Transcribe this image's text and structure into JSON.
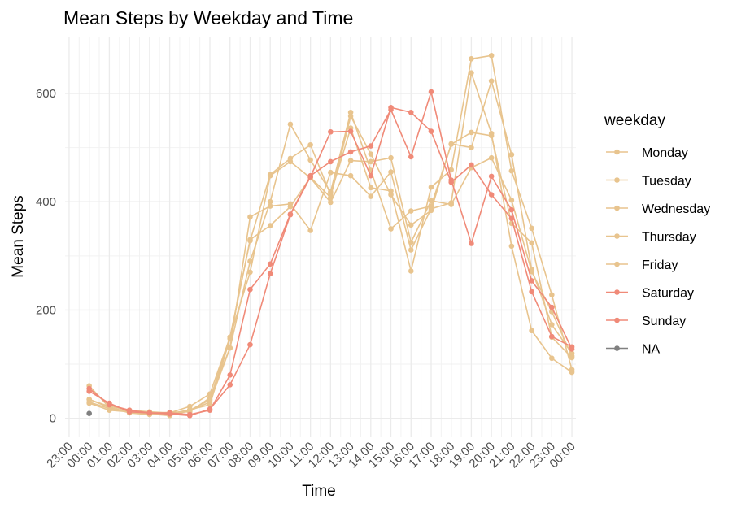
{
  "chart_data": {
    "type": "line",
    "title": "Mean Steps by Weekday and Time",
    "xlabel": "Time",
    "ylabel": "Mean Steps",
    "x_tick_labels": [
      "23:00",
      "00:00",
      "01:00",
      "02:00",
      "03:00",
      "04:00",
      "05:00",
      "06:00",
      "07:00",
      "08:00",
      "09:00",
      "10:00",
      "11:00",
      "12:00",
      "13:00",
      "14:00",
      "15:00",
      "16:00",
      "17:00",
      "18:00",
      "19:00",
      "20:00",
      "21:00",
      "22:00",
      "23:00",
      "00:00"
    ],
    "x_hours": [
      -1,
      0,
      1,
      2,
      3,
      4,
      5,
      6,
      7,
      8,
      9,
      10,
      11,
      12,
      13,
      14,
      15,
      16,
      17,
      18,
      19,
      20,
      21,
      22,
      23,
      24
    ],
    "y_ticks": [
      0,
      200,
      400,
      600
    ],
    "xlim": [
      -1.2,
      24.2
    ],
    "ylim": [
      -35,
      705
    ],
    "grid": true,
    "legend": {
      "title": "weekday",
      "position": "right"
    },
    "series": [
      {
        "name": "Monday",
        "color": "#E8C48E",
        "values": [
          30,
          18,
          13,
          9,
          11,
          12,
          38,
          130,
          372,
          392,
          396,
          347,
          454,
          448,
          410,
          455,
          311,
          387,
          398,
          638,
          526,
          318,
          162,
          111,
          85
        ]
      },
      {
        "name": "Tuesday",
        "color": "#E8C48E",
        "values": [
          35,
          22,
          15,
          12,
          10,
          22,
          45,
          150,
          328,
          450,
          480,
          505,
          413,
          536,
          426,
          420,
          272,
          427,
          459,
          664,
          670,
          457,
          351,
          228,
          90
        ]
      },
      {
        "name": "Wednesday",
        "color": "#E8C48E",
        "values": [
          28,
          15,
          12,
          8,
          5,
          14,
          30,
          130,
          290,
          400,
          543,
          477,
          418,
          565,
          458,
          350,
          383,
          392,
          506,
          528,
          522,
          360,
          324,
          150,
          112
        ]
      },
      {
        "name": "Thursday",
        "color": "#E8C48E",
        "values": [
          60,
          20,
          10,
          7,
          8,
          16,
          25,
          147,
          330,
          356,
          391,
          445,
          408,
          558,
          488,
          413,
          357,
          384,
          507,
          500,
          623,
          487,
          275,
          173,
          120
        ]
      },
      {
        "name": "Friday",
        "color": "#E8C48E",
        "values": [
          35,
          20,
          12,
          10,
          7,
          15,
          34,
          150,
          270,
          448,
          474,
          444,
          399,
          476,
          474,
          481,
          325,
          402,
          395,
          463,
          481,
          403,
          271,
          197,
          115
        ]
      },
      {
        "name": "Saturday",
        "color": "#F08A78",
        "values": [
          50,
          28,
          12,
          10,
          10,
          7,
          15,
          80,
          238,
          285,
          377,
          448,
          474,
          492,
          503,
          570,
          483,
          603,
          440,
          323,
          447,
          385,
          254,
          205,
          128
        ]
      },
      {
        "name": "Sunday",
        "color": "#F08A78",
        "values": [
          55,
          25,
          15,
          10,
          8,
          5,
          17,
          62,
          136,
          267,
          376,
          446,
          529,
          530,
          448,
          574,
          565,
          530,
          436,
          468,
          413,
          369,
          234,
          151,
          132
        ]
      },
      {
        "name": "NA",
        "color": "#808080",
        "values": [
          9
        ]
      }
    ]
  }
}
